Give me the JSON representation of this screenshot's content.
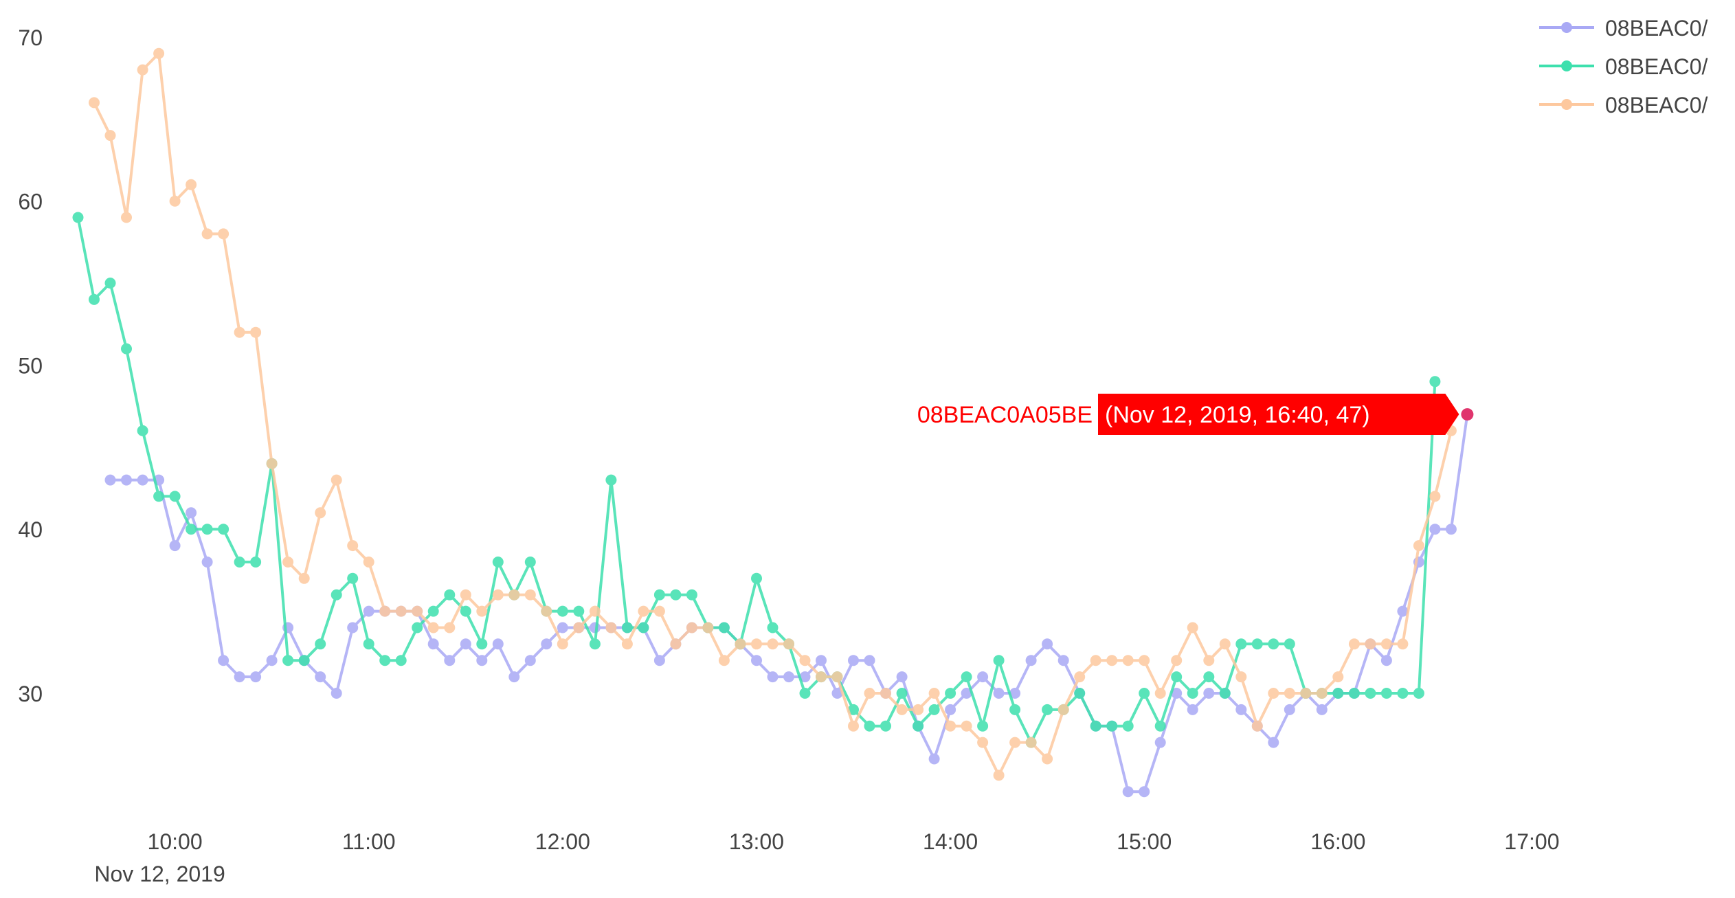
{
  "chart_data": {
    "type": "line",
    "title": "",
    "xlabel": "",
    "ylabel": "",
    "x_axis": {
      "ticks": [
        "10:00",
        "11:00",
        "12:00",
        "13:00",
        "14:00",
        "15:00",
        "16:00",
        "17:00"
      ],
      "date_label": "Nov 12, 2019",
      "range": [
        "2019-11-12 09:25",
        "2019-11-12 17:15"
      ]
    },
    "y_axis": {
      "ticks": [
        30,
        40,
        50,
        60,
        70
      ],
      "range": [
        22,
        71
      ]
    },
    "grid": false,
    "legend": {
      "position": "top-right",
      "entries": [
        "08BEAC0/",
        "08BEAC0/",
        "08BEAC0/"
      ]
    },
    "series": [
      {
        "name": "08BEAC0/",
        "color": "#a9a9f5",
        "points": [
          [
            "09:40",
            43
          ],
          [
            "09:45",
            43
          ],
          [
            "09:50",
            43
          ],
          [
            "09:55",
            43
          ],
          [
            "10:00",
            39
          ],
          [
            "10:05",
            41
          ],
          [
            "10:10",
            38
          ],
          [
            "10:15",
            32
          ],
          [
            "10:20",
            31
          ],
          [
            "10:25",
            31
          ],
          [
            "10:30",
            32
          ],
          [
            "10:35",
            34
          ],
          [
            "10:40",
            32
          ],
          [
            "10:45",
            31
          ],
          [
            "10:50",
            30
          ],
          [
            "10:55",
            34
          ],
          [
            "11:00",
            35
          ],
          [
            "11:05",
            35
          ],
          [
            "11:10",
            35
          ],
          [
            "11:15",
            35
          ],
          [
            "11:20",
            33
          ],
          [
            "11:25",
            32
          ],
          [
            "11:30",
            33
          ],
          [
            "11:35",
            32
          ],
          [
            "11:40",
            33
          ],
          [
            "11:45",
            31
          ],
          [
            "11:50",
            32
          ],
          [
            "11:55",
            33
          ],
          [
            "12:00",
            34
          ],
          [
            "12:05",
            34
          ],
          [
            "12:10",
            34
          ],
          [
            "12:15",
            34
          ],
          [
            "12:20",
            34
          ],
          [
            "12:25",
            34
          ],
          [
            "12:30",
            32
          ],
          [
            "12:35",
            33
          ],
          [
            "12:40",
            34
          ],
          [
            "12:45",
            34
          ],
          [
            "12:50",
            34
          ],
          [
            "12:55",
            33
          ],
          [
            "13:00",
            32
          ],
          [
            "13:05",
            31
          ],
          [
            "13:10",
            31
          ],
          [
            "13:15",
            31
          ],
          [
            "13:20",
            32
          ],
          [
            "13:25",
            30
          ],
          [
            "13:30",
            32
          ],
          [
            "13:35",
            32
          ],
          [
            "13:40",
            30
          ],
          [
            "13:45",
            31
          ],
          [
            "13:50",
            28
          ],
          [
            "13:55",
            26
          ],
          [
            "14:00",
            29
          ],
          [
            "14:05",
            30
          ],
          [
            "14:10",
            31
          ],
          [
            "14:15",
            30
          ],
          [
            "14:20",
            30
          ],
          [
            "14:25",
            32
          ],
          [
            "14:30",
            33
          ],
          [
            "14:35",
            32
          ],
          [
            "14:40",
            30
          ],
          [
            "14:45",
            28
          ],
          [
            "14:50",
            28
          ],
          [
            "14:55",
            24
          ],
          [
            "15:00",
            24
          ],
          [
            "15:05",
            27
          ],
          [
            "15:10",
            30
          ],
          [
            "15:15",
            29
          ],
          [
            "15:20",
            30
          ],
          [
            "15:25",
            30
          ],
          [
            "15:30",
            29
          ],
          [
            "15:35",
            28
          ],
          [
            "15:40",
            27
          ],
          [
            "15:45",
            29
          ],
          [
            "15:50",
            30
          ],
          [
            "15:55",
            29
          ],
          [
            "16:00",
            30
          ],
          [
            "16:05",
            30
          ],
          [
            "16:10",
            33
          ],
          [
            "16:15",
            32
          ],
          [
            "16:20",
            35
          ],
          [
            "16:25",
            38
          ],
          [
            "16:30",
            40
          ],
          [
            "16:35",
            40
          ],
          [
            "16:40",
            47
          ]
        ]
      },
      {
        "name": "08BEAC0/",
        "color": "#3de0ad",
        "points": [
          [
            "09:30",
            59
          ],
          [
            "09:35",
            54
          ],
          [
            "09:40",
            55
          ],
          [
            "09:45",
            51
          ],
          [
            "09:50",
            46
          ],
          [
            "09:55",
            42
          ],
          [
            "10:00",
            42
          ],
          [
            "10:05",
            40
          ],
          [
            "10:10",
            40
          ],
          [
            "10:15",
            40
          ],
          [
            "10:20",
            38
          ],
          [
            "10:25",
            38
          ],
          [
            "10:30",
            44
          ],
          [
            "10:35",
            32
          ],
          [
            "10:40",
            32
          ],
          [
            "10:45",
            33
          ],
          [
            "10:50",
            36
          ],
          [
            "10:55",
            37
          ],
          [
            "11:00",
            33
          ],
          [
            "11:05",
            32
          ],
          [
            "11:10",
            32
          ],
          [
            "11:15",
            34
          ],
          [
            "11:20",
            35
          ],
          [
            "11:25",
            36
          ],
          [
            "11:30",
            35
          ],
          [
            "11:35",
            33
          ],
          [
            "11:40",
            38
          ],
          [
            "11:45",
            36
          ],
          [
            "11:50",
            38
          ],
          [
            "11:55",
            35
          ],
          [
            "12:00",
            35
          ],
          [
            "12:05",
            35
          ],
          [
            "12:10",
            33
          ],
          [
            "12:15",
            43
          ],
          [
            "12:20",
            34
          ],
          [
            "12:25",
            34
          ],
          [
            "12:30",
            36
          ],
          [
            "12:35",
            36
          ],
          [
            "12:40",
            36
          ],
          [
            "12:45",
            34
          ],
          [
            "12:50",
            34
          ],
          [
            "12:55",
            33
          ],
          [
            "13:00",
            37
          ],
          [
            "13:05",
            34
          ],
          [
            "13:10",
            33
          ],
          [
            "13:15",
            30
          ],
          [
            "13:20",
            31
          ],
          [
            "13:25",
            31
          ],
          [
            "13:30",
            29
          ],
          [
            "13:35",
            28
          ],
          [
            "13:40",
            28
          ],
          [
            "13:45",
            30
          ],
          [
            "13:50",
            28
          ],
          [
            "13:55",
            29
          ],
          [
            "14:00",
            30
          ],
          [
            "14:05",
            31
          ],
          [
            "14:10",
            28
          ],
          [
            "14:15",
            32
          ],
          [
            "14:20",
            29
          ],
          [
            "14:25",
            27
          ],
          [
            "14:30",
            29
          ],
          [
            "14:35",
            29
          ],
          [
            "14:40",
            30
          ],
          [
            "14:45",
            28
          ],
          [
            "14:50",
            28
          ],
          [
            "14:55",
            28
          ],
          [
            "15:00",
            30
          ],
          [
            "15:05",
            28
          ],
          [
            "15:10",
            31
          ],
          [
            "15:15",
            30
          ],
          [
            "15:20",
            31
          ],
          [
            "15:25",
            30
          ],
          [
            "15:30",
            33
          ],
          [
            "15:35",
            33
          ],
          [
            "15:40",
            33
          ],
          [
            "15:45",
            33
          ],
          [
            "15:50",
            30
          ],
          [
            "15:55",
            30
          ],
          [
            "16:00",
            30
          ],
          [
            "16:05",
            30
          ],
          [
            "16:10",
            30
          ],
          [
            "16:15",
            30
          ],
          [
            "16:20",
            30
          ],
          [
            "16:25",
            30
          ],
          [
            "16:30",
            49
          ]
        ]
      },
      {
        "name": "08BEAC0/",
        "color": "#fdc89e",
        "points": [
          [
            "09:35",
            66
          ],
          [
            "09:40",
            64
          ],
          [
            "09:45",
            59
          ],
          [
            "09:50",
            68
          ],
          [
            "09:55",
            69
          ],
          [
            "10:00",
            60
          ],
          [
            "10:05",
            61
          ],
          [
            "10:10",
            58
          ],
          [
            "10:15",
            58
          ],
          [
            "10:20",
            52
          ],
          [
            "10:25",
            52
          ],
          [
            "10:30",
            44
          ],
          [
            "10:35",
            38
          ],
          [
            "10:40",
            37
          ],
          [
            "10:45",
            41
          ],
          [
            "10:50",
            43
          ],
          [
            "10:55",
            39
          ],
          [
            "11:00",
            38
          ],
          [
            "11:05",
            35
          ],
          [
            "11:10",
            35
          ],
          [
            "11:15",
            35
          ],
          [
            "11:20",
            34
          ],
          [
            "11:25",
            34
          ],
          [
            "11:30",
            36
          ],
          [
            "11:35",
            35
          ],
          [
            "11:40",
            36
          ],
          [
            "11:45",
            36
          ],
          [
            "11:50",
            36
          ],
          [
            "11:55",
            35
          ],
          [
            "12:00",
            33
          ],
          [
            "12:05",
            34
          ],
          [
            "12:10",
            35
          ],
          [
            "12:15",
            34
          ],
          [
            "12:20",
            33
          ],
          [
            "12:25",
            35
          ],
          [
            "12:30",
            35
          ],
          [
            "12:35",
            33
          ],
          [
            "12:40",
            34
          ],
          [
            "12:45",
            34
          ],
          [
            "12:50",
            32
          ],
          [
            "12:55",
            33
          ],
          [
            "13:00",
            33
          ],
          [
            "13:05",
            33
          ],
          [
            "13:10",
            33
          ],
          [
            "13:15",
            32
          ],
          [
            "13:20",
            31
          ],
          [
            "13:25",
            31
          ],
          [
            "13:30",
            28
          ],
          [
            "13:35",
            30
          ],
          [
            "13:40",
            30
          ],
          [
            "13:45",
            29
          ],
          [
            "13:50",
            29
          ],
          [
            "13:55",
            30
          ],
          [
            "14:00",
            28
          ],
          [
            "14:05",
            28
          ],
          [
            "14:10",
            27
          ],
          [
            "14:15",
            25
          ],
          [
            "14:20",
            27
          ],
          [
            "14:25",
            27
          ],
          [
            "14:30",
            26
          ],
          [
            "14:35",
            29
          ],
          [
            "14:40",
            31
          ],
          [
            "14:45",
            32
          ],
          [
            "14:50",
            32
          ],
          [
            "14:55",
            32
          ],
          [
            "15:00",
            32
          ],
          [
            "15:05",
            30
          ],
          [
            "15:10",
            32
          ],
          [
            "15:15",
            34
          ],
          [
            "15:20",
            32
          ],
          [
            "15:25",
            33
          ],
          [
            "15:30",
            31
          ],
          [
            "15:35",
            28
          ],
          [
            "15:40",
            30
          ],
          [
            "15:45",
            30
          ],
          [
            "15:50",
            30
          ],
          [
            "15:55",
            30
          ],
          [
            "16:00",
            31
          ],
          [
            "16:05",
            33
          ],
          [
            "16:10",
            33
          ],
          [
            "16:15",
            33
          ],
          [
            "16:20",
            33
          ],
          [
            "16:25",
            39
          ],
          [
            "16:30",
            42
          ],
          [
            "16:35",
            46
          ]
        ]
      }
    ],
    "hover_tooltip": {
      "series_name": "08BEAC0A05BE",
      "text": "(Nov 12, 2019, 16:40, 47)",
      "x": "16:40",
      "y": 47,
      "color": "#ff0000",
      "point_color": "#e0356d"
    }
  }
}
